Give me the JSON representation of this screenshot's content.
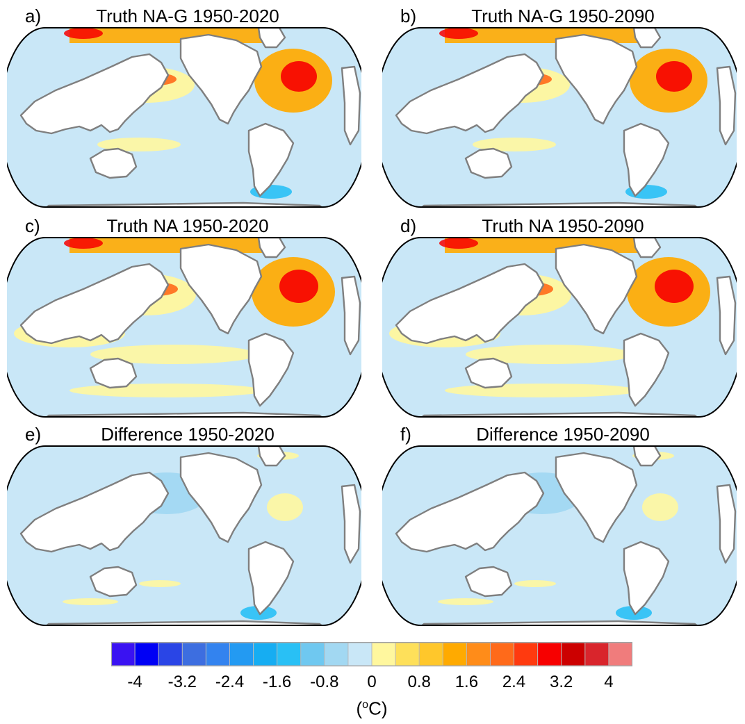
{
  "figure": {
    "panels": [
      {
        "letter": "a)",
        "title": "Truth NA-G 1950-2020",
        "field": "truth_nag"
      },
      {
        "letter": "b)",
        "title": "Truth NA-G 1950-2090",
        "field": "truth_nag"
      },
      {
        "letter": "c)",
        "title": "Truth NA 1950-2020",
        "field": "truth_na"
      },
      {
        "letter": "d)",
        "title": "Truth NA 1950-2090",
        "field": "truth_na"
      },
      {
        "letter": "e)",
        "title": "Difference 1950-2020",
        "field": "difference"
      },
      {
        "letter": "f)",
        "title": "Difference 1950-2090",
        "field": "difference"
      }
    ],
    "colorbar": {
      "tick_labels": [
        "-4",
        "-3.2",
        "-2.4",
        "-1.6",
        "-0.8",
        "0",
        "0.8",
        "1.6",
        "2.4",
        "3.2",
        "4"
      ],
      "units_prefix": "(",
      "units_degree": "o",
      "units_suffix": "C)",
      "colors": [
        "#3a12f2",
        "#0000f5",
        "#2a45e6",
        "#3d6ee0",
        "#3383ef",
        "#239af2",
        "#16adf2",
        "#29c0f5",
        "#6fc8f0",
        "#a2d8f2",
        "#c9e7f7",
        "#fff79e",
        "#fee05a",
        "#ffc72b",
        "#ffaa00",
        "#ff8c19",
        "#ff6a1a",
        "#ff3a0f",
        "#f70000",
        "#cc0000",
        "#d9252c",
        "#f07c7c"
      ]
    },
    "map_colors": {
      "ocean_neutral": "#c9e7f7",
      "ocean_warm": "#fff79e",
      "coastline": "#7f7f7f",
      "land": "#ffffff",
      "frame": "#000000"
    }
  }
}
